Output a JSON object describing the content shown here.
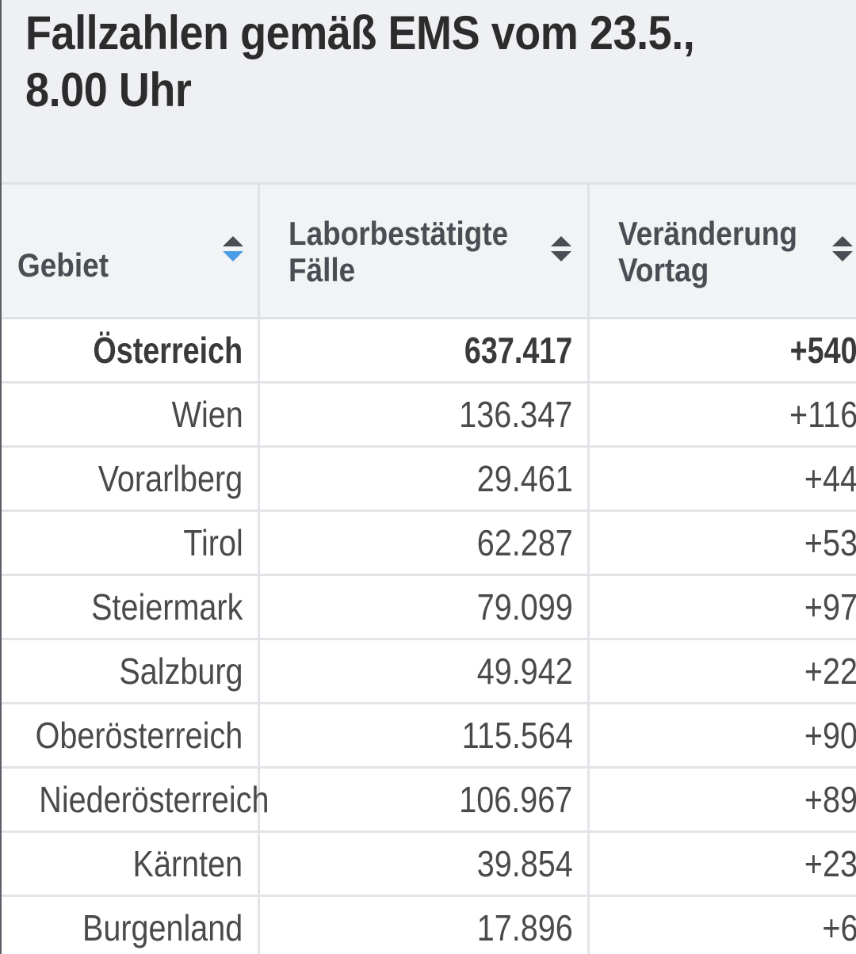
{
  "title": "Fallzahlen gemäß EMS vom 23.5., 8.00 Uhr",
  "colors": {
    "title_bg": "#eff0f3",
    "header_bg": "#f2f3f5",
    "grid": "#e2e4e8",
    "sort_active": "#4a9de4",
    "sort_inactive": "#4a4e54"
  },
  "table": {
    "headers": [
      {
        "line1": "Gebiet",
        "line2": "",
        "sort": "descending",
        "icon": "sort-desc-active-icon"
      },
      {
        "line1": "Laborbestätigte",
        "line2": "Fälle",
        "sort": "none",
        "icon": "sort-icon"
      },
      {
        "line1": "Veränderung",
        "line2": "Vortag",
        "sort": "none",
        "icon": "sort-icon"
      }
    ],
    "rows": [
      {
        "region": "Österreich",
        "cases": "637.417",
        "change": "+540",
        "total": true
      },
      {
        "region": "Wien",
        "cases": "136.347",
        "change": "+116"
      },
      {
        "region": "Vorarlberg",
        "cases": "29.461",
        "change": "+44"
      },
      {
        "region": "Tirol",
        "cases": "62.287",
        "change": "+53"
      },
      {
        "region": "Steiermark",
        "cases": "79.099",
        "change": "+97"
      },
      {
        "region": "Salzburg",
        "cases": "49.942",
        "change": "+22"
      },
      {
        "region": "Oberösterreich",
        "cases": "115.564",
        "change": "+90"
      },
      {
        "region": "Niederösterreich",
        "cases": "106.967",
        "change": "+89"
      },
      {
        "region": "Kärnten",
        "cases": "39.854",
        "change": "+23"
      },
      {
        "region": "Burgenland",
        "cases": "17.896",
        "change": "+6"
      }
    ]
  }
}
